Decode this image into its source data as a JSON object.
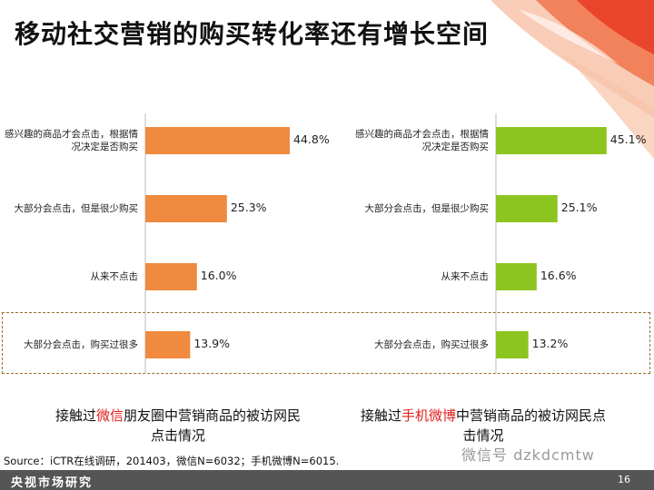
{
  "title": "移动社交营销的购买转化率还有增长空间",
  "colors": {
    "left_bar": "#f08a3e",
    "right_bar": "#8cc520",
    "axis": "#bbbbbb",
    "highlight_text": "#e0201a"
  },
  "chart_data": [
    {
      "type": "bar",
      "orientation": "horizontal",
      "categories": [
        "感兴趣的商品才会点击，根据情况决定是否购买",
        "大部分会点击，但是很少购买",
        "从来不点击",
        "大部分会点击，购买过很多"
      ],
      "values": [
        44.8,
        25.3,
        16.0,
        13.9
      ],
      "value_labels": [
        "44.8%",
        "25.3%",
        "16.0%",
        "13.9%"
      ],
      "caption_pre": "接触过",
      "caption_highlight": "微信",
      "caption_post": "朋友圈中营销商品的被访网民点击情况"
    },
    {
      "type": "bar",
      "orientation": "horizontal",
      "categories": [
        "感兴趣的商品才会点击，根据情况决定是否购买",
        "大部分会点击，但是很少购买",
        "从来不点击",
        "大部分会点击，购买过很多"
      ],
      "values": [
        45.1,
        25.1,
        16.6,
        13.2
      ],
      "value_labels": [
        "45.1%",
        "25.1%",
        "16.6%",
        "13.2%"
      ],
      "caption_pre": "接触过",
      "caption_highlight": "手机微博",
      "caption_post": "中营销商品的被访网民点击情况"
    }
  ],
  "source": "Source：iCTR在线调研，201403，微信N=6032；手机微博N=6015.",
  "footer_brand": "央视市场研究",
  "page_number": "16",
  "watermark": "微信号 dzkdcmtw"
}
